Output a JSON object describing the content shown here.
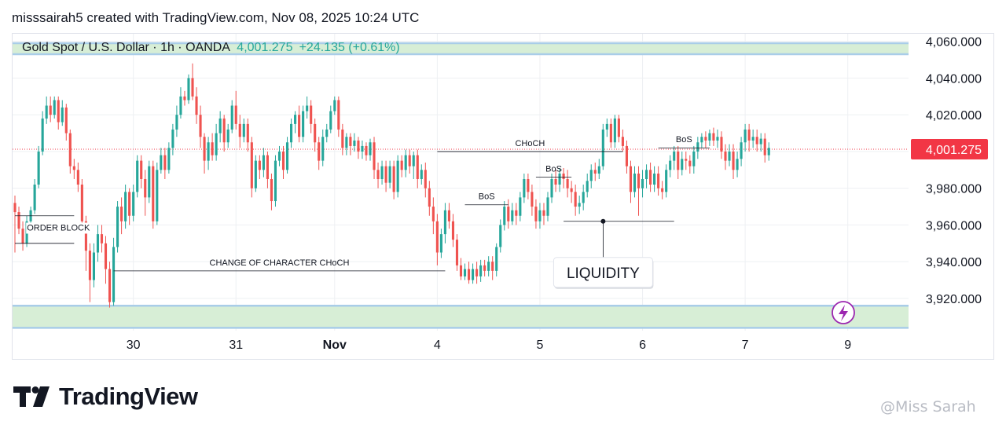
{
  "header": {
    "line": "misssairah5 created with TradingView.com, Nov 08, 2025 10:24 UTC"
  },
  "symbol": {
    "name": "Gold Spot / U.S. Dollar · 1h · OANDA",
    "price": "4,001.275",
    "change": "+24.135 (+0.61%)"
  },
  "brand": {
    "logo_text": "TradingView",
    "watermark": "@Miss Sarah"
  },
  "colors": {
    "bull": "#26a69a",
    "bear": "#ef5350",
    "zone_fill": "#d7eed6",
    "zone_border": "#a9cde8",
    "price_label": "#f23645",
    "grid": "#eef0f3",
    "annotation": "#131722"
  },
  "chart_data": {
    "type": "candlestick",
    "title": "Gold Spot / U.S. Dollar · 1h · OANDA",
    "current_price": 4001.275,
    "current_price_label": "4,001.275",
    "ylim": [
      3905,
      4062
    ],
    "y_ticks": [
      3920,
      3940,
      3960,
      3980,
      4000,
      4020,
      4040,
      4060
    ],
    "y_tick_labels": [
      "3,920.000",
      "3,940.000",
      "3,960.000",
      "3,980.000",
      "",
      "4,020.000",
      "4,040.000",
      "4,060.000"
    ],
    "x_ticks": [
      {
        "label": "30",
        "bold": false,
        "x": 30
      },
      {
        "label": "31",
        "bold": false,
        "x": 56
      },
      {
        "label": "Nov",
        "bold": true,
        "x": 81
      },
      {
        "label": "4",
        "bold": false,
        "x": 107
      },
      {
        "label": "5",
        "bold": false,
        "x": 133
      },
      {
        "label": "6",
        "bold": false,
        "x": 159
      },
      {
        "label": "7",
        "bold": false,
        "x": 185
      },
      {
        "label": "9",
        "bold": false,
        "x": 211
      }
    ],
    "x_range": [
      0,
      225
    ],
    "zones": [
      {
        "y_low": 4053,
        "y_high": 4059
      },
      {
        "y_low": 3904,
        "y_high": 3916
      }
    ],
    "candles": [
      [
        0,
        3972,
        3967,
        3976,
        3945
      ],
      [
        1,
        3967,
        3958,
        3970,
        3955
      ],
      [
        2,
        3958,
        3950,
        3962,
        3946
      ],
      [
        3,
        3950,
        3962,
        3965,
        3948
      ],
      [
        4,
        3962,
        3968,
        3970,
        3958
      ],
      [
        5,
        3968,
        3982,
        3985,
        3966
      ],
      [
        6,
        3982,
        4000,
        4003,
        3980
      ],
      [
        7,
        4000,
        4018,
        4022,
        3998
      ],
      [
        8,
        4018,
        4025,
        4030,
        4015
      ],
      [
        9,
        4025,
        4020,
        4030,
        4016
      ],
      [
        10,
        4020,
        4028,
        4030,
        4018
      ],
      [
        11,
        4028,
        4016,
        4030,
        4012
      ],
      [
        12,
        4016,
        4024,
        4028,
        4014
      ],
      [
        13,
        4024,
        4010,
        4026,
        4006
      ],
      [
        14,
        4010,
        3992,
        4012,
        3988
      ],
      [
        15,
        3992,
        3990,
        3996,
        3985
      ],
      [
        16,
        3990,
        3982,
        3994,
        3978
      ],
      [
        17,
        3982,
        3962,
        3985,
        3958
      ],
      [
        18,
        3962,
        3946,
        3965,
        3935
      ],
      [
        19,
        3946,
        3930,
        3950,
        3918
      ],
      [
        20,
        3930,
        3945,
        3950,
        3926
      ],
      [
        21,
        3945,
        3955,
        3960,
        3940
      ],
      [
        22,
        3955,
        3950,
        3960,
        3945
      ],
      [
        23,
        3950,
        3936,
        3954,
        3928
      ],
      [
        24,
        3936,
        3918,
        3940,
        3915
      ],
      [
        25,
        3918,
        3948,
        3953,
        3916
      ],
      [
        26,
        3948,
        3970,
        3973,
        3945
      ],
      [
        27,
        3970,
        3962,
        3975,
        3955
      ],
      [
        28,
        3962,
        3978,
        3982,
        3958
      ],
      [
        29,
        3978,
        3965,
        3980,
        3960
      ],
      [
        30,
        3965,
        3978,
        3982,
        3962
      ],
      [
        31,
        3978,
        3995,
        3998,
        3975
      ],
      [
        32,
        3995,
        3985,
        3998,
        3980
      ],
      [
        33,
        3985,
        3975,
        3990,
        3965
      ],
      [
        34,
        3975,
        3992,
        3995,
        3972
      ],
      [
        35,
        3992,
        3962,
        3995,
        3958
      ],
      [
        36,
        3962,
        3990,
        3994,
        3960
      ],
      [
        37,
        3990,
        3998,
        4002,
        3988
      ],
      [
        38,
        3998,
        3990,
        4002,
        3985
      ],
      [
        39,
        3990,
        4002,
        4005,
        3988
      ],
      [
        40,
        4002,
        4012,
        4015,
        3998
      ],
      [
        41,
        4012,
        4020,
        4025,
        4008
      ],
      [
        42,
        4020,
        4030,
        4035,
        4018
      ],
      [
        43,
        4030,
        4028,
        4033,
        4025
      ],
      [
        44,
        4028,
        4040,
        4042,
        4026
      ],
      [
        45,
        4040,
        4030,
        4048,
        4028
      ],
      [
        46,
        4030,
        4020,
        4035,
        4015
      ],
      [
        47,
        4020,
        4008,
        4025,
        4002
      ],
      [
        48,
        4008,
        3995,
        4010,
        3988
      ],
      [
        49,
        3995,
        4005,
        4008,
        3990
      ],
      [
        50,
        4005,
        3998,
        4010,
        3995
      ],
      [
        51,
        3998,
        4010,
        4015,
        3995
      ],
      [
        52,
        4010,
        4018,
        4022,
        4005
      ],
      [
        53,
        4018,
        4005,
        4020,
        4000
      ],
      [
        54,
        4005,
        4012,
        4015,
        4002
      ],
      [
        55,
        4012,
        4025,
        4028,
        4010
      ],
      [
        56,
        4025,
        4015,
        4033,
        4012
      ],
      [
        57,
        4015,
        4008,
        4020,
        4002
      ],
      [
        58,
        4008,
        4015,
        4018,
        4005
      ],
      [
        59,
        4015,
        4005,
        4018,
        4000
      ],
      [
        60,
        4005,
        3980,
        4008,
        3975
      ],
      [
        61,
        3980,
        3995,
        3998,
        3978
      ],
      [
        62,
        3995,
        3990,
        3998,
        3985
      ],
      [
        63,
        3990,
        3998,
        4002,
        3986
      ],
      [
        64,
        3998,
        3985,
        4000,
        3980
      ],
      [
        65,
        3985,
        3973,
        3988,
        3968
      ],
      [
        66,
        3973,
        3995,
        3998,
        3970
      ],
      [
        67,
        3995,
        4000,
        4003,
        3992
      ],
      [
        68,
        4000,
        3990,
        4003,
        3985
      ],
      [
        69,
        3990,
        4005,
        4008,
        3988
      ],
      [
        70,
        4005,
        4015,
        4018,
        4002
      ],
      [
        71,
        4015,
        4020,
        4022,
        4010
      ],
      [
        72,
        4020,
        4008,
        4025,
        4005
      ],
      [
        73,
        4008,
        4022,
        4025,
        4005
      ],
      [
        74,
        4022,
        4025,
        4030,
        4018
      ],
      [
        75,
        4025,
        4015,
        4028,
        4010
      ],
      [
        76,
        4015,
        4005,
        4018,
        4000
      ],
      [
        77,
        4005,
        3995,
        4008,
        3990
      ],
      [
        78,
        3995,
        4008,
        4012,
        3992
      ],
      [
        79,
        4008,
        4012,
        4015,
        4005
      ],
      [
        80,
        4012,
        4022,
        4025,
        4010
      ],
      [
        81,
        4022,
        4028,
        4030,
        4020
      ],
      [
        82,
        4028,
        4012,
        4030,
        4008
      ],
      [
        83,
        4012,
        4002,
        4015,
        3998
      ],
      [
        84,
        4002,
        4008,
        4010,
        3998
      ],
      [
        85,
        4008,
        4003,
        4010,
        3998
      ],
      [
        86,
        4003,
        4006,
        4010,
        4000
      ],
      [
        87,
        4006,
        4000,
        4008,
        3996
      ],
      [
        88,
        4000,
        4003,
        4006,
        3996
      ],
      [
        89,
        4003,
        3998,
        4005,
        3995
      ],
      [
        90,
        3998,
        4005,
        4007,
        3995
      ],
      [
        91,
        4005,
        3990,
        4008,
        3985
      ],
      [
        92,
        3990,
        3985,
        3994,
        3980
      ],
      [
        93,
        3985,
        3992,
        3995,
        3982
      ],
      [
        94,
        3992,
        3983,
        3995,
        3978
      ],
      [
        95,
        3983,
        3992,
        3995,
        3980
      ],
      [
        96,
        3992,
        3978,
        3995,
        3974
      ],
      [
        97,
        3978,
        3995,
        3998,
        3975
      ],
      [
        98,
        3995,
        3990,
        3998,
        3986
      ],
      [
        99,
        3990,
        3998,
        4001,
        3986
      ],
      [
        100,
        3998,
        3992,
        4001,
        3988
      ],
      [
        101,
        3992,
        3998,
        4000,
        3985
      ],
      [
        102,
        3998,
        3985,
        4001,
        3980
      ],
      [
        103,
        3985,
        3990,
        3993,
        3982
      ],
      [
        104,
        3990,
        3980,
        3994,
        3975
      ],
      [
        105,
        3980,
        3970,
        3984,
        3965
      ],
      [
        106,
        3970,
        3962,
        3975,
        3955
      ],
      [
        107,
        3962,
        3945,
        3966,
        3938
      ],
      [
        108,
        3945,
        3955,
        3958,
        3942
      ],
      [
        109,
        3955,
        3968,
        3972,
        3950
      ],
      [
        110,
        3968,
        3962,
        3972,
        3958
      ],
      [
        111,
        3962,
        3952,
        3966,
        3948
      ],
      [
        112,
        3952,
        3938,
        3955,
        3935
      ],
      [
        113,
        3938,
        3932,
        3942,
        3930
      ],
      [
        114,
        3932,
        3936,
        3939,
        3930
      ],
      [
        115,
        3936,
        3930,
        3940,
        3928
      ],
      [
        116,
        3930,
        3936,
        3939,
        3928
      ],
      [
        117,
        3936,
        3932,
        3940,
        3928
      ],
      [
        118,
        3932,
        3938,
        3941,
        3929
      ],
      [
        119,
        3938,
        3935,
        3941,
        3932
      ],
      [
        120,
        3935,
        3940,
        3943,
        3932
      ],
      [
        121,
        3940,
        3935,
        3943,
        3930
      ],
      [
        122,
        3935,
        3948,
        3950,
        3932
      ],
      [
        123,
        3948,
        3960,
        3963,
        3945
      ],
      [
        124,
        3960,
        3970,
        3973,
        3957
      ],
      [
        125,
        3970,
        3962,
        3974,
        3958
      ],
      [
        126,
        3962,
        3968,
        3972,
        3960
      ],
      [
        127,
        3968,
        3965,
        3972,
        3960
      ],
      [
        128,
        3965,
        3975,
        3978,
        3962
      ],
      [
        129,
        3975,
        3985,
        3988,
        3972
      ],
      [
        130,
        3985,
        3978,
        3988,
        3974
      ],
      [
        131,
        3978,
        3970,
        3982,
        3965
      ],
      [
        132,
        3970,
        3962,
        3974,
        3958
      ],
      [
        133,
        3962,
        3968,
        3972,
        3958
      ],
      [
        134,
        3968,
        3965,
        3972,
        3960
      ],
      [
        135,
        3965,
        3975,
        3978,
        3962
      ],
      [
        136,
        3975,
        3985,
        3988,
        3972
      ],
      [
        137,
        3985,
        3982,
        3990,
        3978
      ],
      [
        138,
        3982,
        3988,
        3991,
        3978
      ],
      [
        139,
        3988,
        3985,
        3991,
        3980
      ],
      [
        140,
        3985,
        3980,
        3990,
        3975
      ],
      [
        141,
        3980,
        3978,
        3984,
        3972
      ],
      [
        142,
        3978,
        3970,
        3982,
        3965
      ],
      [
        143,
        3970,
        3972,
        3976,
        3966
      ],
      [
        144,
        3972,
        3978,
        3982,
        3968
      ],
      [
        145,
        3978,
        3984,
        3988,
        3975
      ],
      [
        146,
        3984,
        3990,
        3993,
        3980
      ],
      [
        147,
        3990,
        3988,
        3994,
        3984
      ],
      [
        148,
        3988,
        3992,
        3996,
        3985
      ],
      [
        149,
        3992,
        4012,
        4015,
        3990
      ],
      [
        150,
        4012,
        4015,
        4018,
        4008
      ],
      [
        151,
        4015,
        4005,
        4018,
        4002
      ],
      [
        152,
        4005,
        4018,
        4020,
        4002
      ],
      [
        153,
        4018,
        4008,
        4020,
        4005
      ],
      [
        154,
        4008,
        4003,
        4012,
        4000
      ],
      [
        155,
        4003,
        3992,
        4006,
        3988
      ],
      [
        156,
        3992,
        3978,
        3995,
        3972
      ],
      [
        157,
        3978,
        3988,
        3992,
        3975
      ],
      [
        158,
        3988,
        3980,
        3992,
        3965
      ],
      [
        159,
        3980,
        3985,
        3990,
        3975
      ],
      [
        160,
        3985,
        3990,
        3993,
        3980
      ],
      [
        161,
        3990,
        3982,
        3994,
        3978
      ],
      [
        162,
        3982,
        3988,
        3992,
        3978
      ],
      [
        163,
        3988,
        3980,
        3992,
        3976
      ],
      [
        164,
        3980,
        3978,
        3984,
        3974
      ],
      [
        165,
        3978,
        3990,
        3993,
        3975
      ],
      [
        166,
        3990,
        3995,
        3998,
        3986
      ],
      [
        167,
        3995,
        4000,
        4003,
        3990
      ],
      [
        168,
        4000,
        3990,
        4003,
        3985
      ],
      [
        169,
        3990,
        3996,
        4000,
        3987
      ],
      [
        170,
        3996,
        3995,
        4000,
        3990
      ],
      [
        171,
        3995,
        3992,
        3998,
        3988
      ],
      [
        172,
        3992,
        4000,
        4003,
        3988
      ],
      [
        173,
        4000,
        4005,
        4008,
        3996
      ],
      [
        174,
        4005,
        4008,
        4010,
        4002
      ],
      [
        175,
        4008,
        4006,
        4011,
        4002
      ],
      [
        176,
        4006,
        4010,
        4012,
        4003
      ],
      [
        177,
        4010,
        4006,
        4013,
        4003
      ],
      [
        178,
        4006,
        4008,
        4012,
        4002
      ],
      [
        179,
        4008,
        4000,
        4011,
        3996
      ],
      [
        180,
        4000,
        3995,
        4004,
        3990
      ],
      [
        181,
        3995,
        4000,
        4004,
        3992
      ],
      [
        182,
        4000,
        3990,
        4004,
        3985
      ],
      [
        183,
        3990,
        3996,
        4000,
        3986
      ],
      [
        184,
        3996,
        4005,
        4008,
        3992
      ],
      [
        185,
        4005,
        4012,
        4015,
        4000
      ],
      [
        186,
        4012,
        4006,
        4015,
        4000
      ],
      [
        187,
        4006,
        4008,
        4012,
        4002
      ],
      [
        188,
        4008,
        4004,
        4012,
        4000
      ],
      [
        189,
        4004,
        4007,
        4010,
        4000
      ],
      [
        190,
        4007,
        3998,
        4010,
        3994
      ],
      [
        191,
        3998,
        4002,
        4005,
        3995
      ]
    ],
    "annotations": [
      {
        "kind": "hline",
        "text": "ORDER BLOCK",
        "x0": 0,
        "x1": 15,
        "y": 3965,
        "y2": 3950,
        "label_x": 11,
        "label_y": 3957
      },
      {
        "kind": "hline",
        "text": "CHANGE OF CHARACTER CHoCH",
        "x0": 25,
        "x1": 109,
        "y": 3935,
        "label_x": 67,
        "label_y": 3938
      },
      {
        "kind": "hline",
        "text": "BoS",
        "x0": 114,
        "x1": 125,
        "y": 3971,
        "label_x": 119.5,
        "label_y": 3974
      },
      {
        "kind": "hline",
        "text": "BoS",
        "x0": 132,
        "x1": 141,
        "y": 3986,
        "label_x": 136.5,
        "label_y": 3989
      },
      {
        "kind": "hline",
        "text": "CHoCH",
        "x0": 107,
        "x1": 154,
        "y": 4000,
        "label_x": 130.5,
        "label_y": 4003
      },
      {
        "kind": "hline",
        "text": "BoS",
        "x0": 163,
        "x1": 176,
        "y": 4002,
        "label_x": 169.5,
        "label_y": 4005
      }
    ],
    "liquidity": {
      "text": "LIQUIDITY",
      "x0": 139,
      "x1": 167,
      "y": 3962
    }
  }
}
